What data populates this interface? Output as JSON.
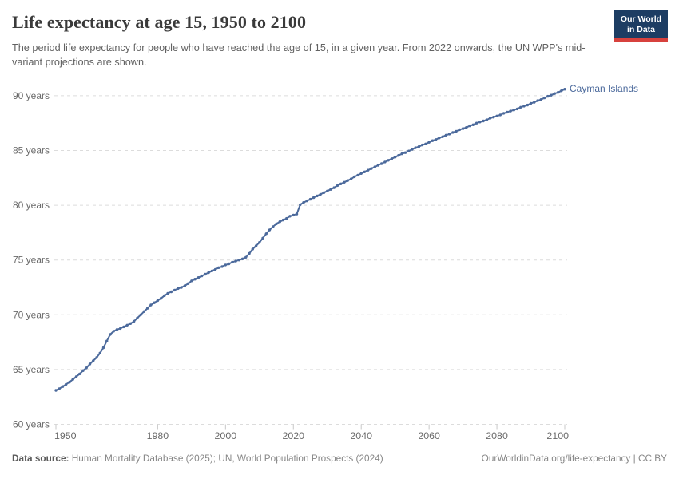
{
  "header": {
    "title": "Life expectancy at age 15, 1950 to 2100",
    "logo_line1": "Our World",
    "logo_line2": "in Data"
  },
  "subtitle": "The period life expectancy for people who have reached the age of 15, in a given year. From 2022 onwards, the UN WPP's mid-variant projections are shown.",
  "footer": {
    "source_label": "Data source:",
    "source_text": " Human Mortality Database (2025); UN, World Population Prospects (2024)",
    "attribution": "OurWorldinData.org/life-expectancy | CC BY"
  },
  "colors": {
    "line": "#4c6a9c",
    "grid": "#dcdcdc",
    "tick": "#c8c8c8",
    "title_text": "#3a3a3a",
    "subtitle_text": "#626262",
    "axis_text": "#6a6a6a",
    "footer_text": "#878787",
    "footer_label": "#5a5a5a",
    "logo_bg": "#1d3d63",
    "logo_red": "#d7413d"
  },
  "chart_data": {
    "type": "line",
    "title": "Life expectancy at age 15, 1950 to 2100",
    "entity": "Cayman Islands",
    "xlabel": "",
    "ylabel": "",
    "x": {
      "start": 1950,
      "end": 2100,
      "step": 1
    },
    "x_ticks": [
      1950,
      1980,
      2000,
      2020,
      2040,
      2060,
      2080,
      2100
    ],
    "y_ticks": [
      60,
      65,
      70,
      75,
      80,
      85,
      90
    ],
    "y_tick_suffix": " years",
    "xlim": [
      1950,
      2100
    ],
    "ylim": [
      60,
      92.5
    ],
    "grid": "horizontal-dashed",
    "legend_position": "end-of-line-label",
    "projection_note": "From 2022 onwards, UN WPP mid-variant projections",
    "values": [
      63.1,
      63.25,
      63.45,
      63.65,
      63.85,
      64.1,
      64.35,
      64.6,
      64.9,
      65.15,
      65.5,
      65.8,
      66.1,
      66.5,
      67.0,
      67.6,
      68.2,
      68.5,
      68.65,
      68.75,
      68.9,
      69.05,
      69.2,
      69.4,
      69.7,
      70.0,
      70.3,
      70.6,
      70.9,
      71.1,
      71.3,
      71.5,
      71.75,
      71.95,
      72.1,
      72.25,
      72.4,
      72.5,
      72.65,
      72.85,
      73.1,
      73.25,
      73.4,
      73.55,
      73.7,
      73.85,
      74.0,
      74.15,
      74.3,
      74.4,
      74.55,
      74.65,
      74.8,
      74.9,
      75.0,
      75.1,
      75.25,
      75.6,
      76.0,
      76.3,
      76.6,
      77.0,
      77.4,
      77.75,
      78.05,
      78.3,
      78.5,
      78.65,
      78.8,
      79.0,
      79.1,
      79.2,
      80.05,
      80.25,
      80.4,
      80.55,
      80.7,
      80.85,
      81.0,
      81.15,
      81.3,
      81.45,
      81.6,
      81.8,
      81.95,
      82.1,
      82.25,
      82.4,
      82.6,
      82.75,
      82.9,
      83.05,
      83.2,
      83.35,
      83.5,
      83.65,
      83.8,
      83.95,
      84.1,
      84.25,
      84.4,
      84.55,
      84.7,
      84.8,
      84.95,
      85.1,
      85.25,
      85.35,
      85.5,
      85.6,
      85.75,
      85.9,
      86.0,
      86.15,
      86.25,
      86.4,
      86.5,
      86.65,
      86.75,
      86.9,
      87.0,
      87.1,
      87.25,
      87.35,
      87.5,
      87.6,
      87.7,
      87.8,
      87.95,
      88.05,
      88.15,
      88.25,
      88.4,
      88.5,
      88.6,
      88.7,
      88.8,
      88.95,
      89.05,
      89.15,
      89.3,
      89.4,
      89.55,
      89.65,
      89.8,
      89.95,
      90.05,
      90.2,
      90.3,
      90.45,
      90.6
    ]
  }
}
